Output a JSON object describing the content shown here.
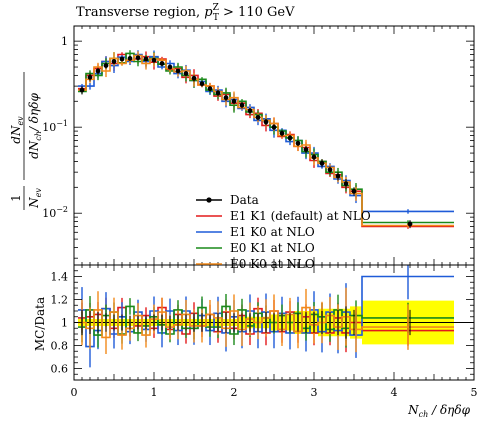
{
  "chart_data": [
    {
      "type": "line",
      "title": "Transverse region, p_T^Z > 110 GeV",
      "title_parts": {
        "prefix": "Transverse region, ",
        "var": "p",
        "sub": "T",
        "sup": "Z",
        "suffix": " > 110 GeV"
      },
      "ylabel_parts": {
        "frac": "1",
        "num": "dN",
        "num_sub": "ev",
        "den_a": "N",
        "den_a_sub": "ev",
        "den_b": "dN",
        "den_b_sub": "ch",
        "den_c": "/ δηδφ"
      },
      "yscale": "log",
      "ylim": [
        0.0025,
        1.5
      ],
      "xlim": [
        0,
        5
      ],
      "y_tick_labels": [
        {
          "value": 0.01,
          "base": "10",
          "exp": "−2"
        },
        {
          "value": 0.1,
          "base": "10",
          "exp": "−1"
        },
        {
          "value": 1,
          "base": "1",
          "exp": ""
        }
      ],
      "legend_position": "lower-center",
      "legend": [
        {
          "label": "Data",
          "color": "#000000",
          "style": "points"
        },
        {
          "label": "E1 K1 (default) at NLO",
          "color": "#e31a1c",
          "style": "line"
        },
        {
          "label": "E1 K0 at NLO",
          "color": "#1f5bd8",
          "style": "line"
        },
        {
          "label": "E0 K1 at NLO",
          "color": "#1a8a1a",
          "style": "line"
        },
        {
          "label": "E0 K0 at NLO",
          "color": "#f28a1a",
          "style": "line"
        }
      ],
      "data_points": {
        "x": [
          0.1,
          0.2,
          0.3,
          0.4,
          0.5,
          0.6,
          0.7,
          0.8,
          0.9,
          1.0,
          1.1,
          1.2,
          1.3,
          1.4,
          1.5,
          1.6,
          1.7,
          1.8,
          1.9,
          2.0,
          2.1,
          2.2,
          2.3,
          2.4,
          2.5,
          2.6,
          2.7,
          2.8,
          2.9,
          3.0,
          3.1,
          3.2,
          3.3,
          3.4,
          3.5,
          4.2
        ],
        "y": [
          0.27,
          0.38,
          0.45,
          0.52,
          0.58,
          0.62,
          0.63,
          0.64,
          0.62,
          0.6,
          0.55,
          0.5,
          0.45,
          0.42,
          0.37,
          0.32,
          0.28,
          0.25,
          0.22,
          0.2,
          0.18,
          0.155,
          0.13,
          0.115,
          0.1,
          0.085,
          0.075,
          0.065,
          0.055,
          0.045,
          0.038,
          0.032,
          0.027,
          0.022,
          0.018,
          0.0075
        ],
        "yerr": [
          0.03,
          0.04,
          0.04,
          0.04,
          0.04,
          0.04,
          0.04,
          0.04,
          0.04,
          0.04,
          0.04,
          0.03,
          0.03,
          0.03,
          0.03,
          0.025,
          0.02,
          0.02,
          0.02,
          0.015,
          0.015,
          0.012,
          0.01,
          0.01,
          0.008,
          0.007,
          0.006,
          0.005,
          0.005,
          0.004,
          0.004,
          0.003,
          0.003,
          0.003,
          0.002,
          0.0008
        ]
      },
      "bin_edges": [
        0.05,
        0.15,
        0.25,
        0.35,
        0.45,
        0.55,
        0.65,
        0.75,
        0.85,
        0.95,
        1.05,
        1.15,
        1.25,
        1.35,
        1.45,
        1.55,
        1.65,
        1.75,
        1.85,
        1.95,
        2.05,
        2.15,
        2.25,
        2.35,
        2.45,
        2.55,
        2.65,
        2.75,
        2.85,
        2.95,
        3.05,
        3.15,
        3.25,
        3.35,
        3.45,
        3.6,
        4.75
      ],
      "series": [
        {
          "name": "E1 K1 (default) at NLO",
          "color": "#e31a1c",
          "values": [
            0.28,
            0.4,
            0.48,
            0.58,
            0.55,
            0.7,
            0.6,
            0.62,
            0.66,
            0.57,
            0.62,
            0.47,
            0.48,
            0.38,
            0.4,
            0.31,
            0.3,
            0.23,
            0.24,
            0.19,
            0.19,
            0.14,
            0.145,
            0.105,
            0.11,
            0.078,
            0.082,
            0.06,
            0.058,
            0.041,
            0.04,
            0.029,
            0.028,
            0.02,
            0.018,
            0.007
          ]
        },
        {
          "name": "E1 K0 at NLO",
          "color": "#1f5bd8",
          "values": [
            0.3,
            0.3,
            0.42,
            0.58,
            0.52,
            0.65,
            0.58,
            0.7,
            0.58,
            0.66,
            0.5,
            0.55,
            0.42,
            0.46,
            0.35,
            0.34,
            0.26,
            0.27,
            0.2,
            0.21,
            0.165,
            0.17,
            0.12,
            0.125,
            0.092,
            0.092,
            0.068,
            0.07,
            0.05,
            0.05,
            0.035,
            0.035,
            0.025,
            0.024,
            0.016,
            0.0105
          ]
        },
        {
          "name": "E0 K1 at NLO",
          "color": "#1a8a1a",
          "values": [
            0.26,
            0.42,
            0.4,
            0.55,
            0.63,
            0.56,
            0.72,
            0.58,
            0.6,
            0.63,
            0.54,
            0.45,
            0.5,
            0.4,
            0.35,
            0.36,
            0.27,
            0.24,
            0.25,
            0.18,
            0.2,
            0.15,
            0.14,
            0.12,
            0.1,
            0.09,
            0.075,
            0.07,
            0.052,
            0.048,
            0.04,
            0.03,
            0.03,
            0.021,
            0.019,
            0.0078
          ]
        },
        {
          "name": "E0 K0 at NLO",
          "color": "#f28a1a",
          "values": [
            0.27,
            0.36,
            0.5,
            0.45,
            0.63,
            0.55,
            0.6,
            0.68,
            0.55,
            0.62,
            0.6,
            0.48,
            0.44,
            0.45,
            0.36,
            0.31,
            0.3,
            0.26,
            0.21,
            0.22,
            0.17,
            0.16,
            0.13,
            0.12,
            0.11,
            0.08,
            0.08,
            0.06,
            0.062,
            0.044,
            0.038,
            0.034,
            0.026,
            0.023,
            0.017,
            0.0072
          ]
        }
      ]
    },
    {
      "type": "line",
      "ylabel": "MC/Data",
      "xlabel_parts": {
        "a": "N",
        "a_sub": "ch",
        "b": " / δηδφ"
      },
      "xlim": [
        0,
        5
      ],
      "ylim": [
        0.5,
        1.5
      ],
      "y_ticks": [
        0.6,
        0.8,
        1.0,
        1.2,
        1.4
      ],
      "y_tick_labels": [
        "0.6",
        "0.8",
        "1",
        "1.2",
        "1.4"
      ],
      "x_ticks": [
        0,
        1,
        2,
        3,
        4,
        5
      ],
      "x_tick_labels": [
        "0",
        "1",
        "2",
        "3",
        "4",
        "5"
      ],
      "band_color": "#ffff00",
      "band": {
        "x": [
          0.05,
          1.05,
          2.05,
          2.45,
          2.75,
          3.05,
          3.45,
          3.6,
          4.75
        ],
        "lo": [
          0.97,
          0.97,
          0.95,
          0.93,
          0.9,
          0.88,
          0.86,
          0.81,
          0.81
        ],
        "hi": [
          1.03,
          1.03,
          1.05,
          1.07,
          1.1,
          1.12,
          1.14,
          1.19,
          1.19
        ]
      },
      "series": [
        {
          "name": "E1 K1 (default) at NLO",
          "color": "#e31a1c",
          "values": [
            1.04,
            1.05,
            1.07,
            1.12,
            0.95,
            1.13,
            0.95,
            0.97,
            1.06,
            0.95,
            1.13,
            0.94,
            1.07,
            0.9,
            1.08,
            0.97,
            1.07,
            0.92,
            1.09,
            0.95,
            1.06,
            0.9,
            1.12,
            0.91,
            1.1,
            0.92,
            1.09,
            0.92,
            1.05,
            0.91,
            1.05,
            0.91,
            1.04,
            0.91,
            1.0,
            0.93
          ]
        },
        {
          "name": "E1 K0 at NLO",
          "color": "#1f5bd8",
          "values": [
            1.11,
            0.79,
            0.93,
            1.12,
            0.9,
            1.05,
            0.92,
            1.09,
            0.94,
            1.1,
            0.91,
            1.1,
            0.93,
            1.1,
            0.95,
            1.06,
            0.93,
            1.08,
            0.91,
            1.05,
            0.92,
            1.1,
            0.92,
            1.09,
            0.92,
            1.08,
            0.91,
            1.08,
            0.91,
            1.11,
            0.92,
            1.09,
            0.93,
            1.09,
            0.89,
            1.4
          ]
        },
        {
          "name": "E0 K1 at NLO",
          "color": "#1a8a1a",
          "values": [
            0.96,
            1.11,
            0.89,
            1.06,
            1.09,
            0.9,
            1.14,
            0.91,
            0.97,
            1.05,
            0.98,
            0.9,
            1.11,
            0.95,
            0.95,
            1.13,
            0.96,
            0.96,
            1.14,
            0.9,
            1.11,
            0.97,
            1.08,
            1.04,
            1.0,
            1.06,
            1.0,
            1.08,
            0.95,
            1.07,
            1.05,
            0.94,
            1.11,
            0.95,
            1.06,
            1.04
          ]
        },
        {
          "name": "E0 K0 at NLO",
          "color": "#f28a1a",
          "values": [
            1.0,
            0.95,
            1.11,
            0.87,
            1.09,
            0.89,
            0.95,
            1.06,
            0.89,
            1.03,
            1.09,
            0.96,
            0.98,
            1.07,
            0.97,
            0.97,
            1.07,
            1.04,
            0.95,
            1.1,
            0.94,
            1.03,
            1.0,
            1.04,
            1.1,
            0.94,
            1.07,
            0.92,
            1.13,
            0.98,
            1.0,
            1.06,
            0.96,
            1.05,
            0.94,
            0.96
          ]
        }
      ],
      "data_ratio_err": [
        0.11,
        0.1,
        0.09,
        0.08,
        0.07,
        0.07,
        0.06,
        0.06,
        0.06,
        0.07,
        0.07,
        0.06,
        0.07,
        0.07,
        0.08,
        0.08,
        0.07,
        0.08,
        0.09,
        0.08,
        0.08,
        0.08,
        0.08,
        0.09,
        0.08,
        0.08,
        0.08,
        0.08,
        0.09,
        0.09,
        0.1,
        0.09,
        0.11,
        0.14,
        0.11,
        0.11
      ]
    }
  ]
}
